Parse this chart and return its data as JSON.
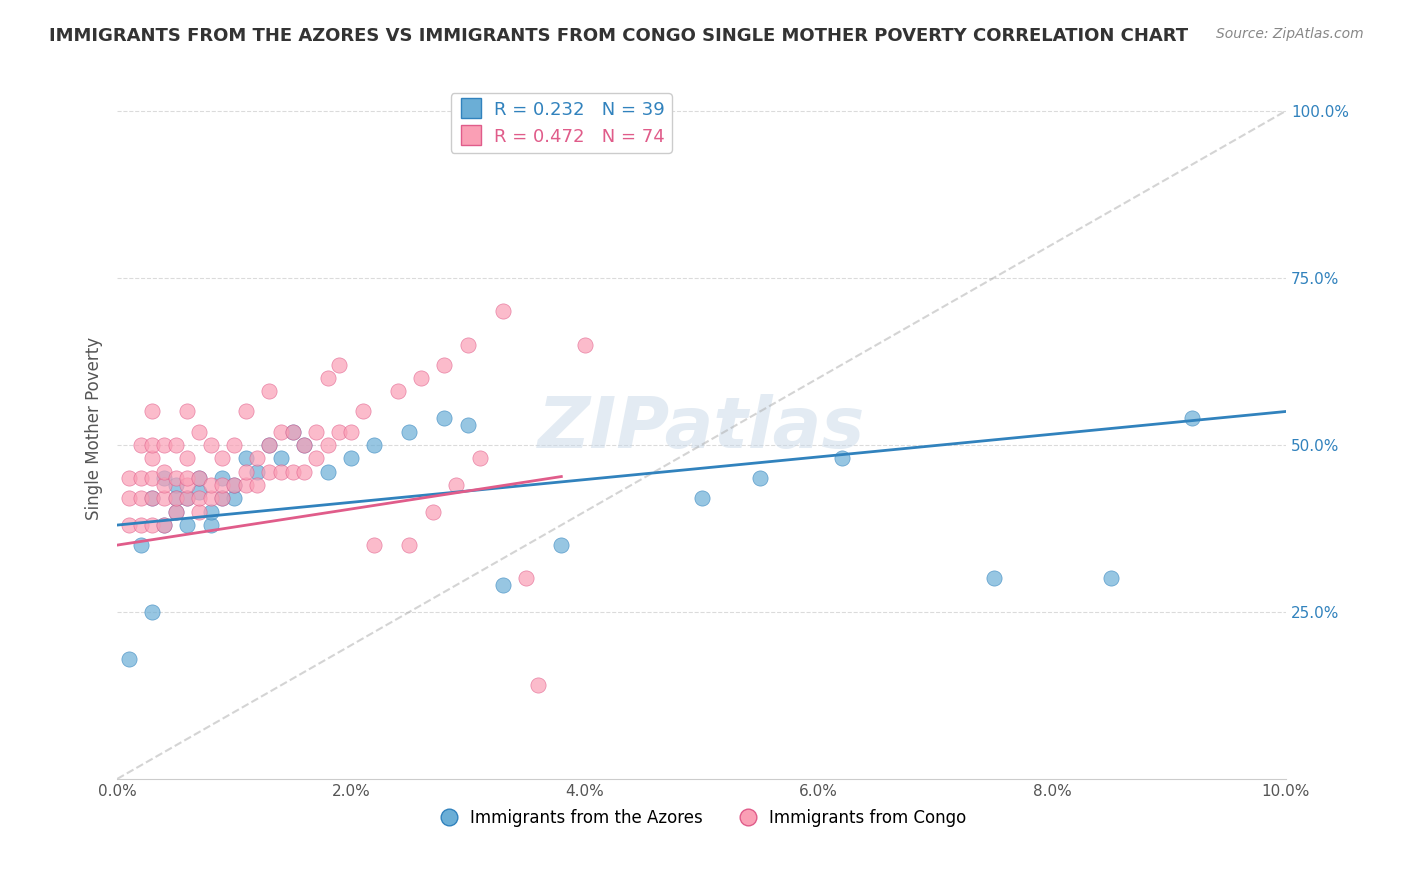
{
  "title": "IMMIGRANTS FROM THE AZORES VS IMMIGRANTS FROM CONGO SINGLE MOTHER POVERTY CORRELATION CHART",
  "source": "Source: ZipAtlas.com",
  "xlabel": "",
  "ylabel": "Single Mother Poverty",
  "xlim": [
    0.0,
    0.1
  ],
  "ylim": [
    0.0,
    1.05
  ],
  "yticks": [
    0.25,
    0.5,
    0.75,
    1.0
  ],
  "ytick_labels": [
    "25.0%",
    "50.0%",
    "75.0%",
    "100.0%"
  ],
  "xticks": [
    0.0,
    0.02,
    0.04,
    0.06,
    0.08,
    0.1
  ],
  "xtick_labels": [
    "0.0%",
    "2.0%",
    "4.0%",
    "6.0%",
    "8.0%",
    "10.0%"
  ],
  "azores_color": "#6baed6",
  "congo_color": "#fa9fb5",
  "trend_azores_color": "#3182bd",
  "trend_congo_color": "#e05c8a",
  "legend_azores_r": "R = 0.232",
  "legend_azores_n": "N = 39",
  "legend_congo_r": "R = 0.472",
  "legend_congo_n": "N = 74",
  "legend_label_azores": "Immigrants from the Azores",
  "legend_label_congo": "Immigrants from Congo",
  "watermark": "ZIPatlas",
  "background_color": "#ffffff",
  "grid_color": "#cccccc",
  "azores_x": [
    0.001,
    0.002,
    0.003,
    0.003,
    0.004,
    0.004,
    0.005,
    0.005,
    0.005,
    0.006,
    0.006,
    0.007,
    0.007,
    0.008,
    0.008,
    0.009,
    0.009,
    0.01,
    0.01,
    0.011,
    0.012,
    0.013,
    0.014,
    0.015,
    0.016,
    0.018,
    0.02,
    0.022,
    0.025,
    0.028,
    0.03,
    0.033,
    0.038,
    0.05,
    0.055,
    0.062,
    0.075,
    0.085,
    0.092
  ],
  "azores_y": [
    0.18,
    0.35,
    0.42,
    0.25,
    0.38,
    0.45,
    0.4,
    0.42,
    0.44,
    0.38,
    0.42,
    0.43,
    0.45,
    0.38,
    0.4,
    0.42,
    0.45,
    0.42,
    0.44,
    0.48,
    0.46,
    0.5,
    0.48,
    0.52,
    0.5,
    0.46,
    0.48,
    0.5,
    0.52,
    0.54,
    0.53,
    0.29,
    0.35,
    0.42,
    0.45,
    0.48,
    0.3,
    0.3,
    0.54
  ],
  "congo_x": [
    0.001,
    0.001,
    0.001,
    0.002,
    0.002,
    0.002,
    0.002,
    0.003,
    0.003,
    0.003,
    0.003,
    0.003,
    0.003,
    0.004,
    0.004,
    0.004,
    0.004,
    0.004,
    0.005,
    0.005,
    0.005,
    0.005,
    0.006,
    0.006,
    0.006,
    0.006,
    0.006,
    0.007,
    0.007,
    0.007,
    0.007,
    0.008,
    0.008,
    0.008,
    0.009,
    0.009,
    0.009,
    0.01,
    0.01,
    0.011,
    0.011,
    0.011,
    0.012,
    0.012,
    0.013,
    0.013,
    0.013,
    0.014,
    0.014,
    0.015,
    0.015,
    0.016,
    0.016,
    0.017,
    0.017,
    0.018,
    0.018,
    0.019,
    0.019,
    0.02,
    0.021,
    0.022,
    0.024,
    0.025,
    0.026,
    0.027,
    0.028,
    0.029,
    0.03,
    0.031,
    0.033,
    0.035,
    0.036,
    0.04
  ],
  "congo_y": [
    0.38,
    0.42,
    0.45,
    0.38,
    0.42,
    0.45,
    0.5,
    0.38,
    0.42,
    0.45,
    0.48,
    0.5,
    0.55,
    0.38,
    0.42,
    0.44,
    0.46,
    0.5,
    0.4,
    0.42,
    0.45,
    0.5,
    0.42,
    0.44,
    0.45,
    0.48,
    0.55,
    0.4,
    0.42,
    0.45,
    0.52,
    0.42,
    0.44,
    0.5,
    0.42,
    0.44,
    0.48,
    0.44,
    0.5,
    0.44,
    0.46,
    0.55,
    0.44,
    0.48,
    0.46,
    0.5,
    0.58,
    0.46,
    0.52,
    0.46,
    0.52,
    0.46,
    0.5,
    0.48,
    0.52,
    0.5,
    0.6,
    0.52,
    0.62,
    0.52,
    0.55,
    0.35,
    0.58,
    0.35,
    0.6,
    0.4,
    0.62,
    0.44,
    0.65,
    0.48,
    0.7,
    0.3,
    0.14,
    0.65
  ]
}
